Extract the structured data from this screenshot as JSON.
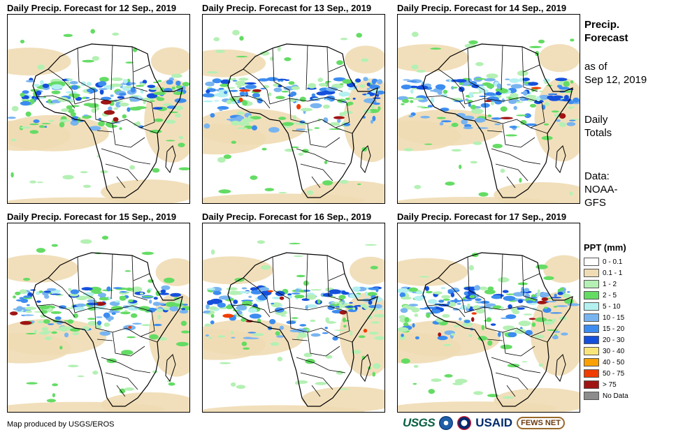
{
  "panels": [
    {
      "title": "Daily Precip. Forecast for 12 Sep., 2019",
      "date": "12 Sep., 2019"
    },
    {
      "title": "Daily Precip. Forecast for 13 Sep., 2019",
      "date": "13 Sep., 2019"
    },
    {
      "title": "Daily Precip. Forecast for 14 Sep., 2019",
      "date": "14 Sep., 2019"
    },
    {
      "title": "Daily Precip. Forecast for 15 Sep., 2019",
      "date": "15 Sep., 2019"
    },
    {
      "title": "Daily Precip. Forecast for 16 Sep., 2019",
      "date": "16 Sep., 2019"
    },
    {
      "title": "Daily Precip. Forecast for 17 Sep., 2019",
      "date": "17 Sep., 2019"
    }
  ],
  "info": {
    "heading_line1": "Precip.",
    "heading_line2": "Forecast",
    "asof_line1": "as of",
    "asof_line2": "Sep 12, 2019",
    "totals_line1": "Daily",
    "totals_line2": "Totals",
    "data_line1": "Data:",
    "data_line2": "NOAA-",
    "data_line3": "GFS"
  },
  "legend": {
    "title": "PPT (mm)",
    "items": [
      {
        "label": "0 - 0.1",
        "color": "#ffffff"
      },
      {
        "label": "0.1 - 1",
        "color": "#f0dcb4"
      },
      {
        "label": "1 - 2",
        "color": "#b4f0b4"
      },
      {
        "label": "2 - 5",
        "color": "#64dc64"
      },
      {
        "label": "5 - 10",
        "color": "#b4f0f0"
      },
      {
        "label": "10 - 15",
        "color": "#78b4f0"
      },
      {
        "label": "15 - 20",
        "color": "#3c8cf0"
      },
      {
        "label": "20 - 30",
        "color": "#1450dc"
      },
      {
        "label": "30 - 40",
        "color": "#fae678"
      },
      {
        "label": "40 - 50",
        "color": "#faa000"
      },
      {
        "label": "50 - 75",
        "color": "#f03c00"
      },
      {
        "label": "> 75",
        "color": "#a01414"
      },
      {
        "label": "No Data",
        "color": "#8c8c8c"
      }
    ]
  },
  "credit": "Map produced by USGS/EROS",
  "logos": {
    "usgs": "USGS",
    "usaid": "USAID",
    "fews": "FEWS NET"
  },
  "icons": [
    "usgs-logo-icon",
    "noaa-logo-icon",
    "usaid-seal-icon",
    "fews-net-logo-icon"
  ]
}
